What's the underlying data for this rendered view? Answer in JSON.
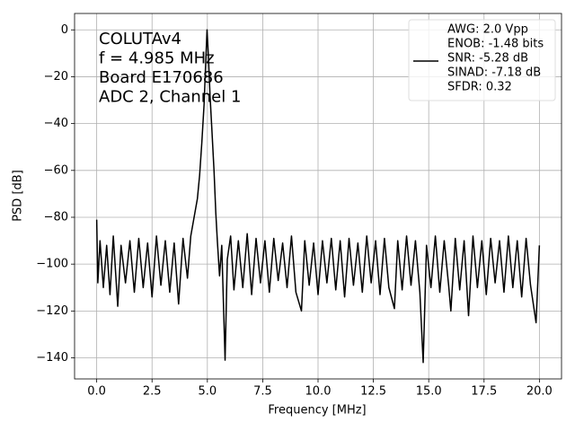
{
  "chart_data": {
    "type": "line",
    "xlabel": "Frequency [MHz]",
    "ylabel": "PSD [dB]",
    "annotation": [
      "COLUTAv4",
      "f = 4.985 MHz",
      "Board E170686",
      "ADC 2, Channel 1"
    ],
    "xlim": [
      -1,
      21
    ],
    "ylim": [
      -149,
      7
    ],
    "grid": true,
    "legend": "upper right",
    "xticks": [
      {
        "value": 0,
        "label": "0.0"
      },
      2.5,
      {
        "value": 5,
        "label": "5.0"
      },
      7.5,
      {
        "value": 10,
        "label": "10.0"
      },
      12.5,
      {
        "value": 15,
        "label": "15.0"
      },
      17.5,
      {
        "value": 20,
        "label": "20.0"
      }
    ],
    "yticks": [
      0,
      {
        "value": -20,
        "label": "−20"
      },
      {
        "value": -40,
        "label": "−40"
      },
      {
        "value": -60,
        "label": "−60"
      },
      {
        "value": -80,
        "label": "−80"
      },
      {
        "value": -100,
        "label": "−100"
      },
      {
        "value": -120,
        "label": "−120"
      },
      {
        "value": -140,
        "label": "−140"
      }
    ],
    "x": [
      0,
      0.05,
      0.15,
      0.3,
      0.45,
      0.6,
      0.75,
      0.95,
      1.1,
      1.3,
      1.5,
      1.7,
      1.9,
      2.1,
      2.3,
      2.5,
      2.7,
      2.9,
      3.1,
      3.3,
      3.5,
      3.7,
      3.9,
      4.1,
      4.25,
      4.4,
      4.55,
      4.65,
      4.75,
      4.85,
      4.92,
      4.985,
      5.05,
      5.12,
      5.2,
      5.3,
      5.38,
      5.45,
      5.55,
      5.65,
      5.8,
      5.9,
      6.05,
      6.2,
      6.4,
      6.6,
      6.8,
      7.0,
      7.2,
      7.4,
      7.6,
      7.8,
      8.0,
      8.2,
      8.4,
      8.6,
      8.8,
      9.0,
      9.25,
      9.4,
      9.6,
      9.8,
      10.0,
      10.2,
      10.4,
      10.6,
      10.8,
      11.0,
      11.2,
      11.4,
      11.6,
      11.8,
      12.0,
      12.2,
      12.4,
      12.6,
      12.8,
      13.0,
      13.2,
      13.45,
      13.6,
      13.8,
      14.0,
      14.2,
      14.4,
      14.6,
      14.75,
      14.9,
      15.1,
      15.3,
      15.5,
      15.7,
      15.9,
      16.0,
      16.2,
      16.4,
      16.6,
      16.8,
      17.0,
      17.2,
      17.4,
      17.6,
      17.8,
      18.0,
      18.2,
      18.4,
      18.6,
      18.8,
      19.0,
      19.2,
      19.4,
      19.6,
      19.85,
      20.0
    ],
    "series": [
      {
        "name": [
          "AWG: 2.0 Vpp",
          "ENOB: -1.48 bits",
          "SNR: -5.28 dB",
          "SINAD: -7.18 dB",
          "SFDR: 0.32"
        ],
        "color": "#000000",
        "values": [
          -81,
          -108,
          -90,
          -110,
          -92,
          -113,
          -88,
          -118,
          -92,
          -108,
          -90,
          -112,
          -89,
          -110,
          -91,
          -114,
          -88,
          -109,
          -90,
          -112,
          -91,
          -117,
          -89,
          -106,
          -88,
          -80,
          -72,
          -62,
          -48,
          -32,
          -15,
          0,
          -12,
          -28,
          -42,
          -60,
          -78,
          -90,
          -105,
          -92,
          -141,
          -98,
          -88,
          -111,
          -90,
          -110,
          -87,
          -113,
          -89,
          -108,
          -90,
          -112,
          -89,
          -107,
          -91,
          -110,
          -88,
          -112,
          -120,
          -90,
          -109,
          -91,
          -113,
          -90,
          -108,
          -89,
          -111,
          -90,
          -114,
          -89,
          -109,
          -91,
          -112,
          -88,
          -108,
          -90,
          -113,
          -89,
          -110,
          -119,
          -90,
          -111,
          -88,
          -109,
          -90,
          -112,
          -142,
          -92,
          -110,
          -88,
          -112,
          -90,
          -109,
          -120,
          -89,
          -111,
          -90,
          -122,
          -88,
          -110,
          -90,
          -113,
          -89,
          -108,
          -90,
          -112,
          -88,
          -110,
          -90,
          -114,
          -89,
          -109,
          -125,
          -92
        ]
      }
    ]
  }
}
